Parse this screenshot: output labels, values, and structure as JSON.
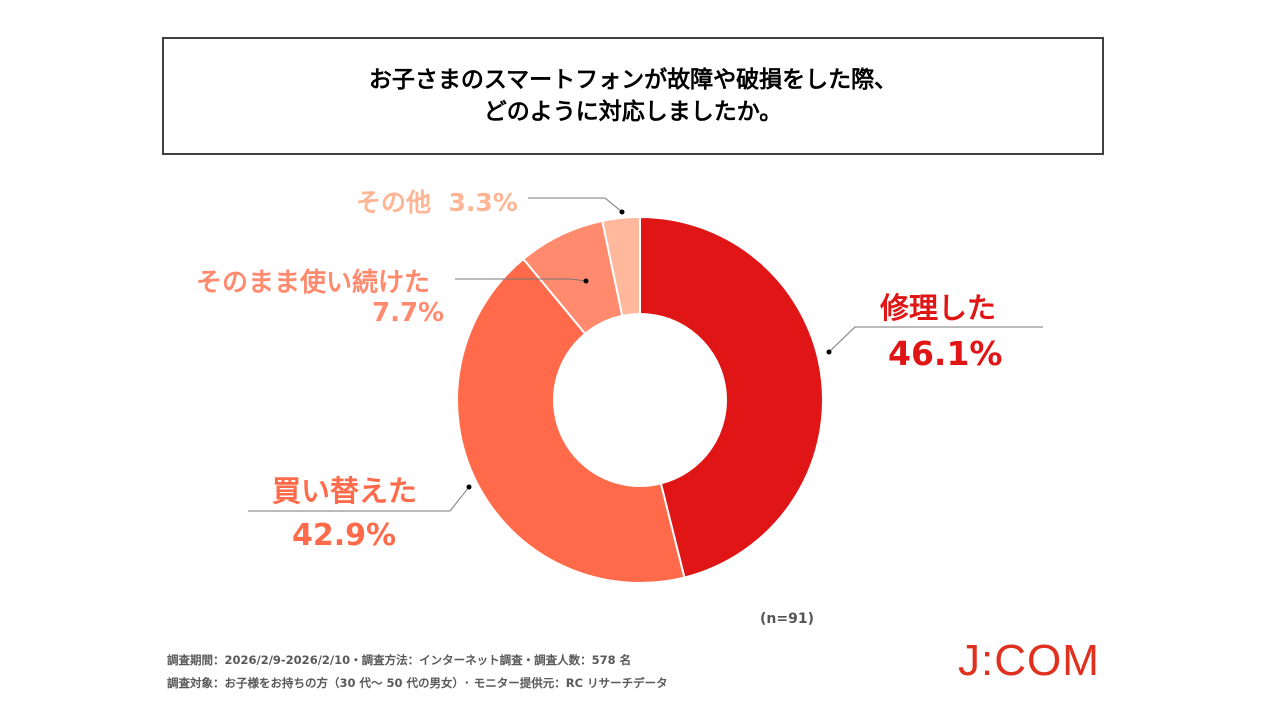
{
  "title": {
    "line1": "お子さまのスマートフォンが故障や破損をした際、",
    "line2": "どのように対応しましたか。"
  },
  "chart_data": {
    "type": "pie",
    "subtype": "donut",
    "categories": [
      "修理した",
      "買い替えた",
      "そのまま使い続けた",
      "その他"
    ],
    "values": [
      46.1,
      42.9,
      7.7,
      3.3
    ],
    "value_labels": [
      "46.1%",
      "42.9%",
      "7.7%",
      "3.3%"
    ],
    "colors": [
      "#e01515",
      "#ff6b4a",
      "#ff8a6e",
      "#ffb89c"
    ],
    "start": "top, clockwise",
    "legend": "none (direct labels)"
  },
  "sample_size": "(n=91)",
  "footer": {
    "line1": "調査期間：2026/2/9-2026/2/10・調査方法：インターネット調査・調査人数：578 名",
    "line2": "調査対象：お子様をお持ちの方（30 代～ 50 代の男女）･ モニター提供元：RC リサーチデータ"
  },
  "logo": {
    "text": "J:COM",
    "color": "#e0301e"
  }
}
